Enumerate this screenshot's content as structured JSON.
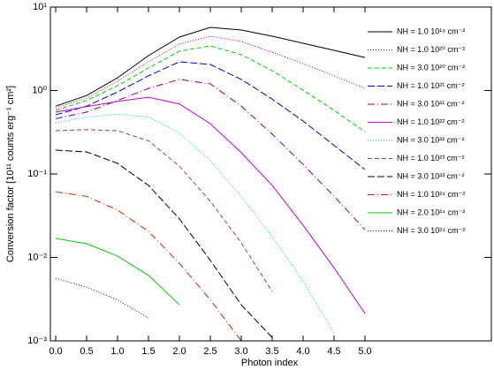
{
  "chart_data": {
    "type": "line",
    "xlabel": "Photon index",
    "ylabel": "Conversion factor [10¹¹ counts erg⁻¹ cm²]",
    "log_y": true,
    "legend": "upper right",
    "xlim": [
      -0.086,
      7.043
    ],
    "ylim": [
      0.001,
      10
    ],
    "xticks": [
      {
        "value": 0,
        "label": "0.0"
      },
      0.5,
      {
        "value": 1,
        "label": "1.0"
      },
      1.5,
      {
        "value": 2,
        "label": "2.0"
      },
      2.5,
      {
        "value": 3,
        "label": "3.0"
      },
      3.5,
      {
        "value": 4,
        "label": "4.0"
      },
      4.5,
      {
        "value": 5,
        "label": "5.0"
      }
    ],
    "yticks": [
      {
        "value": 0.001,
        "label": "10⁻³"
      },
      {
        "value": 0.01,
        "label": "10⁻²"
      },
      {
        "value": 0.1,
        "label": "10⁻¹"
      },
      {
        "value": 1,
        "label": "10⁰"
      },
      {
        "value": 10,
        "label": "10¹"
      }
    ],
    "x": [
      0,
      0.5,
      1,
      1.5,
      2,
      2.5,
      3,
      3.5,
      4,
      4.5,
      5
    ],
    "series": [
      {
        "name": "NH = 1.0 10¹⁹ cm⁻²",
        "color": "#000000",
        "dash": "none",
        "values": [
          0.65,
          0.87,
          1.42,
          2.62,
          4.37,
          5.71,
          5.31,
          4.48,
          3.68,
          3.03,
          2.49
        ]
      },
      {
        "name": "NH = 1.0 10²⁰ cm⁻²",
        "color": "#dd0000",
        "dash": "1 2",
        "values": [
          0.62,
          0.81,
          1.29,
          2.21,
          3.6,
          4.48,
          3.87,
          2.88,
          2.1,
          1.5,
          1.06
        ]
      },
      {
        "name": "NH = 3.0 10²⁰ cm⁻²",
        "color": "#00cc00",
        "dash": "5 3",
        "values": [
          0.58,
          0.76,
          1.14,
          1.86,
          2.96,
          3.42,
          2.69,
          1.73,
          1.01,
          0.58,
          0.32
        ]
      },
      {
        "name": "NH = 1.0 10²¹ cm⁻²",
        "color": "#0000cc",
        "dash": "8 3",
        "values": [
          0.51,
          0.65,
          0.96,
          1.5,
          2.21,
          2.05,
          1.36,
          0.79,
          0.43,
          0.22,
          0.113
        ]
      },
      {
        "name": "NH = 3.0 10²¹ cm⁻²",
        "color": "#880088",
        "dash": "8 3 1 3",
        "values": [
          0.46,
          0.55,
          0.76,
          1.06,
          1.36,
          1.2,
          0.65,
          0.3,
          0.13,
          0.054,
          0.0215
        ]
      },
      {
        "name": "NH = 1.0 10²² cm⁻²",
        "color": "#cc00cc",
        "dash": "none",
        "values": [
          0.55,
          0.64,
          0.74,
          0.83,
          0.69,
          0.4,
          0.18,
          0.073,
          0.0243,
          0.0075,
          0.00213
        ]
      },
      {
        "name": "NH = 3.0 10²² cm⁻²",
        "color": "#00cccc",
        "dash": "1 2",
        "values": [
          0.41,
          0.48,
          0.52,
          0.48,
          0.31,
          0.144,
          0.054,
          0.0177,
          0.0052,
          0.00122,
          null
        ]
      },
      {
        "name": "NH = 1.0 10²³ cm⁻²",
        "color": "#993399",
        "dash": "5 3",
        "values": [
          0.33,
          0.34,
          0.33,
          0.25,
          0.124,
          0.047,
          0.015,
          0.0039,
          null,
          null,
          null
        ]
      },
      {
        "name": "NH = 3.0 10²³ cm⁻²",
        "color": "#000000",
        "dash": "8 3",
        "values": [
          0.193,
          0.184,
          0.134,
          0.073,
          0.029,
          0.0092,
          0.0027,
          0.0011,
          null,
          null,
          null
        ]
      },
      {
        "name": "NH = 1.0 10²⁴ cm⁻²",
        "color": "#cc2200",
        "dash": "8 3 1 3",
        "values": [
          0.061,
          0.054,
          0.037,
          0.0205,
          0.0085,
          0.0031,
          0.001,
          null,
          null,
          null,
          null
        ]
      },
      {
        "name": "NH = 2.0 10²⁴ cm⁻²",
        "color": "#00cc00",
        "dash": "none",
        "values": [
          0.0169,
          0.0146,
          0.0104,
          0.0061,
          0.0027,
          null,
          null,
          null,
          null,
          null,
          null
        ]
      },
      {
        "name": "NH = 3.0 10²⁴ cm⁻²",
        "color": "#000099",
        "dash": "1 2",
        "values": [
          0.0056,
          0.0044,
          0.0031,
          0.00188,
          null,
          null,
          null,
          null,
          null,
          null,
          null
        ]
      }
    ]
  }
}
